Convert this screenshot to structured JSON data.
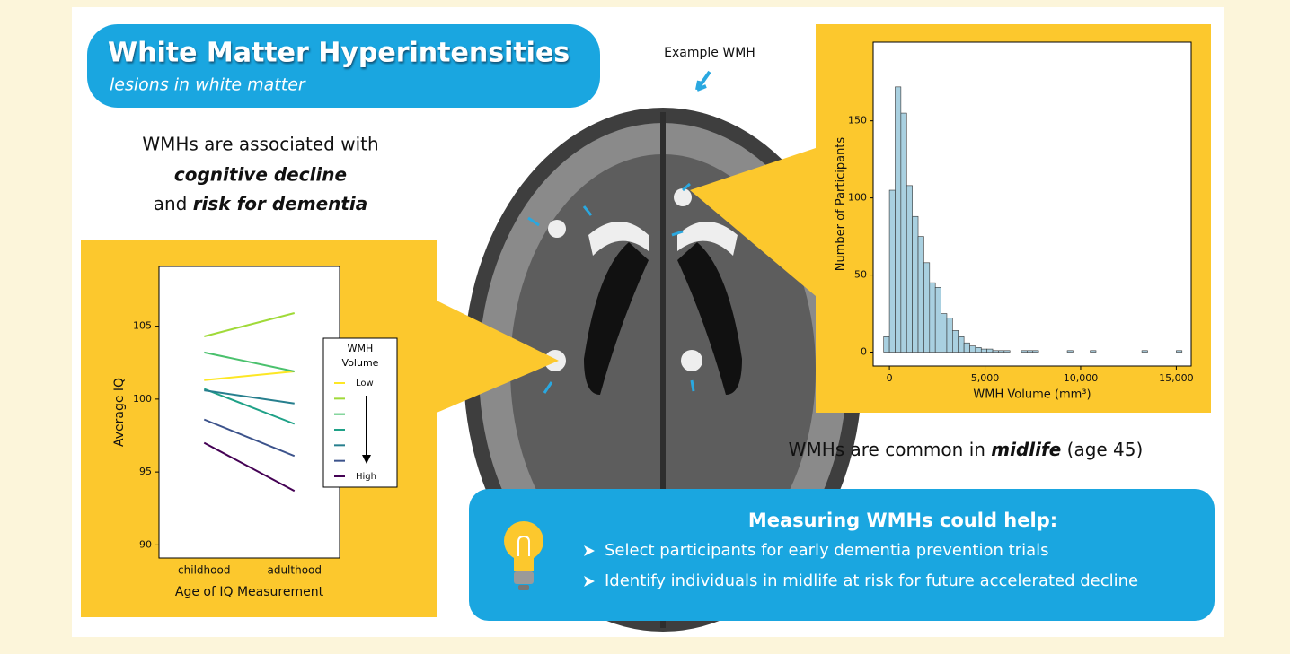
{
  "header": {
    "title": "White Matter Hyperintensities",
    "subtitle": "lesions in white matter"
  },
  "association": {
    "line1": "WMHs are associated with",
    "line2": "cognitive decline",
    "line3_prefix": "and ",
    "line3_emphasis": "risk for dementia"
  },
  "example_label": "Example WMH",
  "midlife": {
    "prefix": "WMHs are common in ",
    "emphasis": "midlife",
    "suffix": " (age 45)"
  },
  "help_box": {
    "heading": "Measuring WMHs could help:",
    "bullets": [
      "Select participants for early dementia prevention trials",
      "Identify individuals in midlife at risk for future accelerated decline"
    ]
  },
  "chart_data": [
    {
      "type": "line",
      "x_label": "Age of IQ Measurement",
      "y_label": "Average IQ",
      "categories": [
        "childhood",
        "adulthood"
      ],
      "ylim": [
        89.1,
        109.1
      ],
      "yticks": [
        90,
        95,
        100,
        105
      ],
      "legend_title": "WMH Volume",
      "series": [
        {
          "name": "Low",
          "color": "#fde725",
          "values": [
            101.3,
            101.9
          ]
        },
        {
          "color": "#a0da39",
          "values": [
            104.3,
            105.9
          ]
        },
        {
          "color": "#4ac16d",
          "values": [
            103.2,
            101.9
          ]
        },
        {
          "color": "#1fa187",
          "values": [
            100.7,
            98.3
          ]
        },
        {
          "color": "#277f8e",
          "values": [
            100.6,
            99.7
          ]
        },
        {
          "color": "#3b528b",
          "values": [
            98.6,
            96.1
          ]
        },
        {
          "name": "High",
          "color": "#440154",
          "values": [
            97.0,
            93.7
          ]
        }
      ]
    },
    {
      "type": "histogram",
      "x_label": "WMH Volume (mm³)",
      "y_label": "Number of Participants",
      "color": "#a9d0e0",
      "bins": [
        -300,
        0,
        300,
        600,
        900,
        1200,
        1500,
        1800,
        2100,
        2400,
        2700,
        3000,
        3300,
        3600,
        3900,
        4200,
        4500,
        4800,
        5100,
        5400,
        5700,
        6000,
        6300,
        6600,
        6900,
        7200,
        7500,
        7800,
        8100,
        8400,
        8700,
        9000,
        9300,
        9600,
        9900,
        10200,
        10500,
        10800,
        11100,
        11400,
        11700,
        12000,
        12300,
        12600,
        12900,
        13200,
        13500,
        13800,
        14100,
        14400,
        14700,
        15000,
        15300
      ],
      "counts": [
        10,
        105,
        172,
        155,
        108,
        88,
        75,
        58,
        45,
        42,
        25,
        22,
        14,
        10,
        6,
        4,
        3,
        2,
        2,
        1,
        1,
        1,
        0,
        0,
        1,
        1,
        1,
        0,
        0,
        0,
        0,
        0,
        1,
        0,
        0,
        0,
        1,
        0,
        0,
        0,
        0,
        0,
        0,
        0,
        0,
        1,
        0,
        0,
        0,
        0,
        0,
        1
      ],
      "xlim": [
        -850,
        15780
      ],
      "xticks": [
        0,
        {
          "value": 5000,
          "label": "5,000"
        },
        {
          "value": 10000,
          "label": "10,000"
        },
        {
          "value": 15000,
          "label": "15,000"
        }
      ],
      "ylim": [
        -9,
        201
      ],
      "yticks": [
        0,
        50,
        100,
        150
      ]
    }
  ]
}
